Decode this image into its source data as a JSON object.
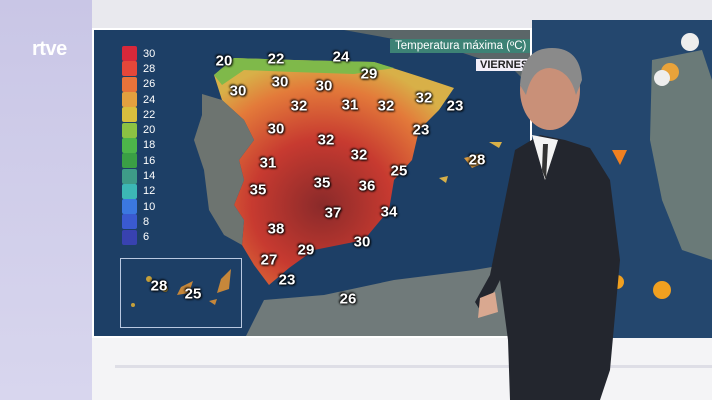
{
  "channel": {
    "logo_text": "rtve"
  },
  "map": {
    "title": "Temperatura máxima (ºC)",
    "day": "VIERNES",
    "legend": [
      {
        "value": "30",
        "color": "#d8283a"
      },
      {
        "value": "28",
        "color": "#e5473a"
      },
      {
        "value": "26",
        "color": "#e8733a"
      },
      {
        "value": "24",
        "color": "#e3a03f"
      },
      {
        "value": "22",
        "color": "#d8be3e"
      },
      {
        "value": "20",
        "color": "#8cc243"
      },
      {
        "value": "18",
        "color": "#4db54a"
      },
      {
        "value": "16",
        "color": "#3a9f45"
      },
      {
        "value": "14",
        "color": "#3e9b88"
      },
      {
        "value": "12",
        "color": "#3cb7b5"
      },
      {
        "value": "10",
        "color": "#3b78e0"
      },
      {
        "value": "8",
        "color": "#3a5ad0"
      },
      {
        "value": "6",
        "color": "#3842b0"
      }
    ],
    "temperatures": [
      "20",
      "22",
      "24",
      "29",
      "30",
      "30",
      "30",
      "32",
      "31",
      "32",
      "32",
      "23",
      "30",
      "23",
      "32",
      "32",
      "28",
      "31",
      "25",
      "35",
      "35",
      "36",
      "37",
      "34",
      "38",
      "30",
      "29",
      "27",
      "23",
      "26"
    ],
    "canary_temperatures": [
      "28",
      "25"
    ]
  }
}
